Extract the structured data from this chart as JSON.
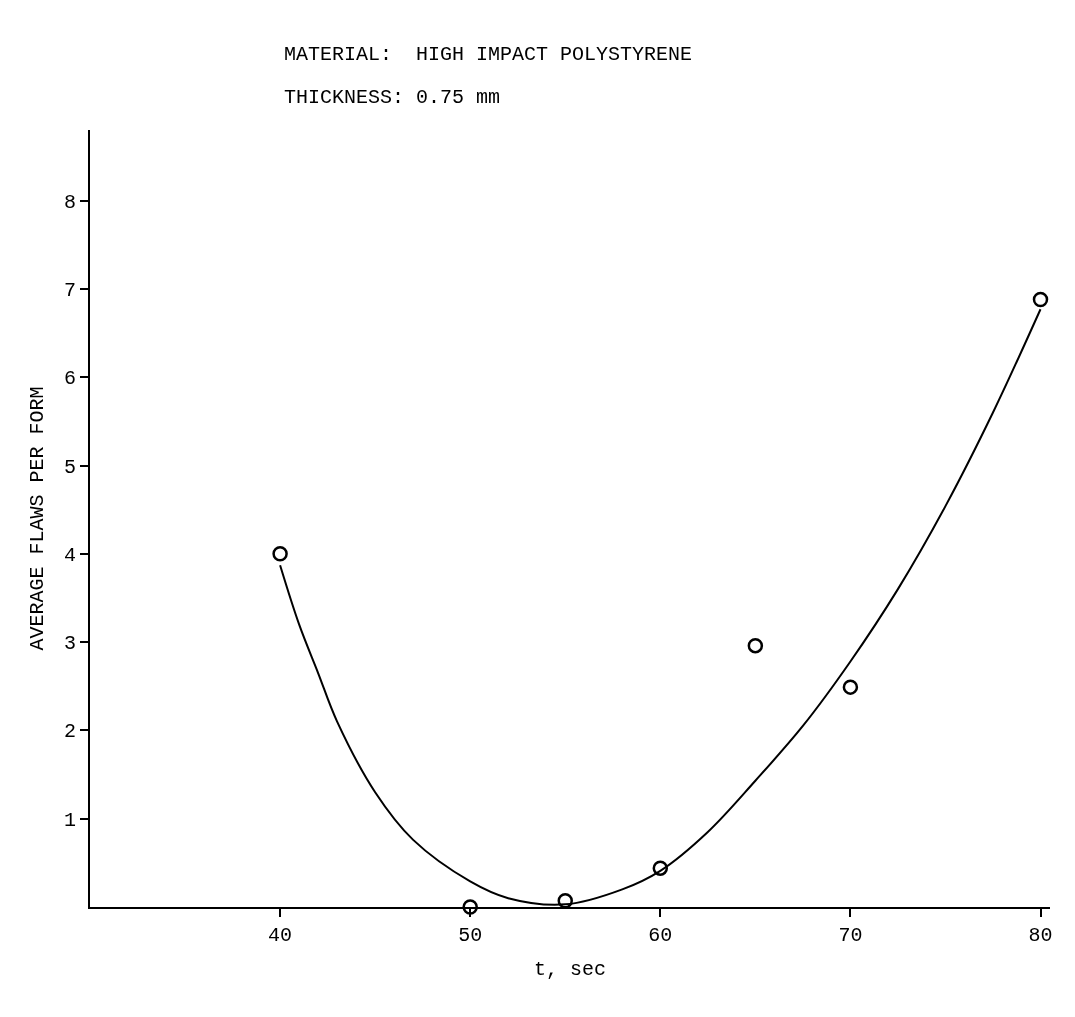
{
  "chart_data": {
    "type": "scatter",
    "xlabel": "t, sec",
    "ylabel": "AVERAGE FLAWS PER FORM",
    "annotations": [
      "MATERIAL:  HIGH IMPACT POLYSTYRENE",
      "THICKNESS: 0.75 mm"
    ],
    "x": [
      40,
      50,
      55,
      60,
      65,
      70,
      80
    ],
    "series": [
      {
        "color": "#000000",
        "marker": "circle",
        "values": [
          4.0,
          0.0,
          0.07,
          0.44,
          2.96,
          2.49,
          6.88
        ]
      },
      {
        "type": "line",
        "color": "#000000",
        "marker": "none",
        "line_style": "solid",
        "x": [
          40,
          41,
          42,
          43,
          45,
          47,
          50,
          52,
          55,
          58,
          60,
          62.5,
          65,
          67.5,
          70,
          72.5,
          75,
          77.5,
          80
        ],
        "values": [
          3.87,
          3.2,
          2.65,
          2.1,
          1.3,
          0.76,
          0.29,
          0.1,
          0.03,
          0.2,
          0.41,
          0.85,
          1.43,
          2.05,
          2.78,
          3.6,
          4.54,
          5.6,
          6.77
        ]
      }
    ],
    "xlim": [
      30,
      80.5
    ],
    "ylim": [
      0,
      8.8
    ],
    "xticks": [
      40,
      50,
      60,
      70,
      80
    ],
    "yticks": [
      1,
      2,
      3,
      4,
      5,
      6,
      7,
      8
    ]
  }
}
